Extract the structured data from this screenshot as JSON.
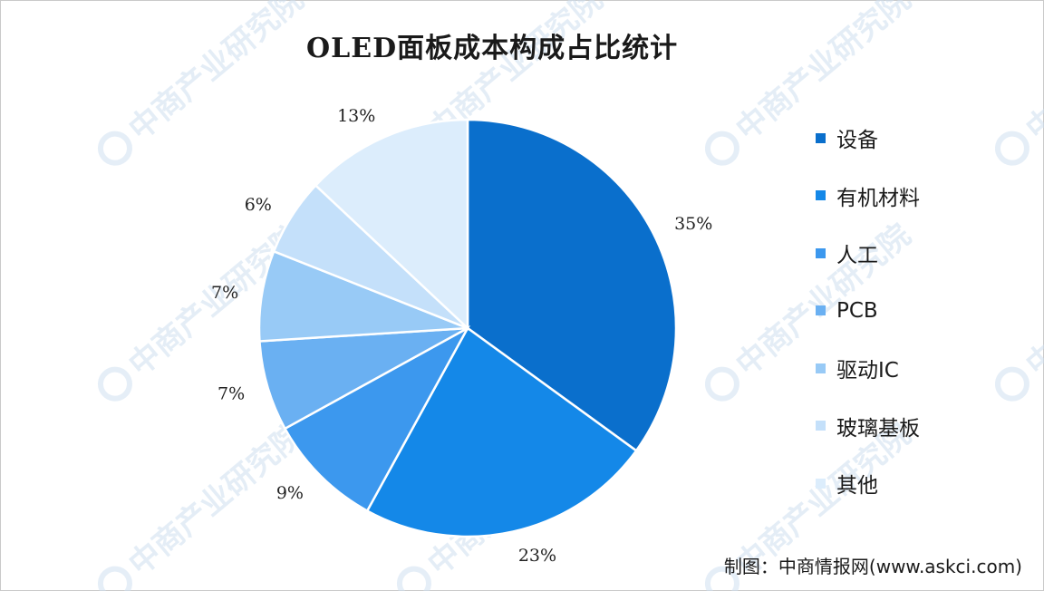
{
  "title": "OLED面板成本构成占比统计",
  "source": "制图：中商情报网(www.askci.com)",
  "watermark": {
    "text": "中商产业研究院",
    "icon": "askci-logo-icon"
  },
  "chart_data": {
    "type": "pie",
    "title": "OLED面板成本构成占比统计",
    "legend_position": "right",
    "categories": [
      "设备",
      "有机材料",
      "人工",
      "PCB",
      "驱动IC",
      "玻璃基板",
      "其他"
    ],
    "values": [
      35,
      23,
      9,
      7,
      7,
      6,
      13
    ],
    "labels": [
      "35%",
      "23%",
      "9%",
      "7%",
      "7%",
      "6%",
      "13%"
    ],
    "colors": [
      "#0a6fcc",
      "#1488e8",
      "#3c98ee",
      "#6ab0f2",
      "#98caf6",
      "#c4e0fa",
      "#dcedfc"
    ]
  }
}
